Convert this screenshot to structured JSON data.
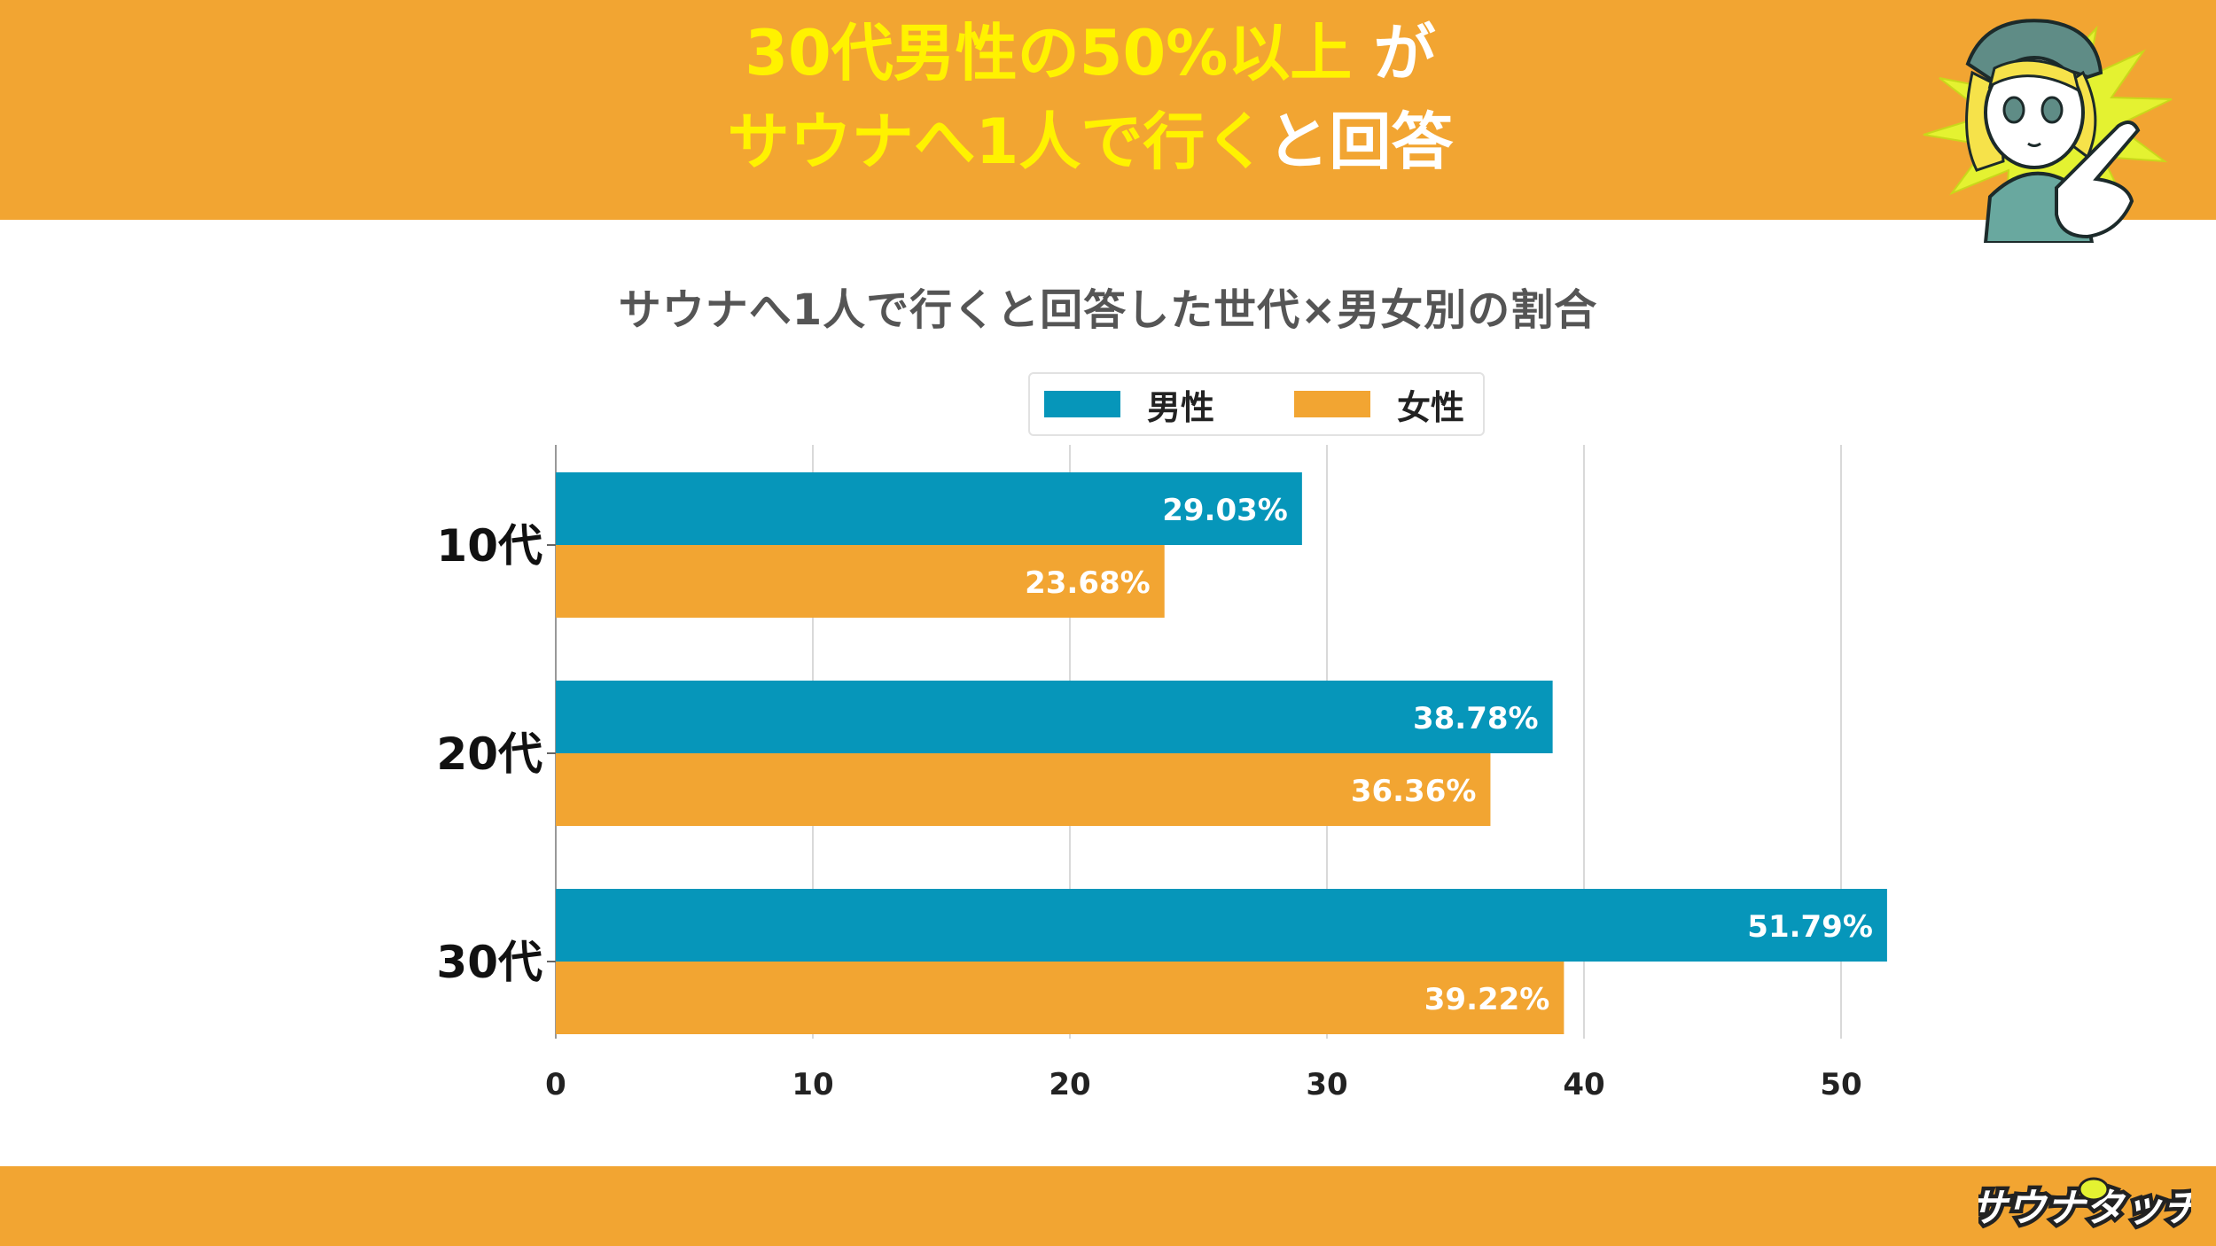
{
  "header": {
    "line1": "30代男性の50%以上",
    "line1_suffix": "が",
    "line2_highlight": "サウナへ1人で行く",
    "line2_suffix": "と回答"
  },
  "colors": {
    "banner": "#f2a532",
    "male": "#0696ba",
    "female": "#f2a532",
    "headline_yellow": "#fff200",
    "title_gray": "#555555"
  },
  "brand": {
    "logo_text": "サウナタッチ",
    "mascot_icon": "mascot-girl-pointing-icon"
  },
  "chart_data": {
    "type": "bar",
    "orientation": "horizontal",
    "title": "サウナへ1人で行くと回答した世代×男女別の割合",
    "categories": [
      "10代",
      "20代",
      "30代"
    ],
    "series": [
      {
        "name": "男性",
        "color": "#0696ba",
        "values": [
          29.03,
          38.78,
          51.79
        ],
        "labels": [
          "29.03%",
          "38.78%",
          "51.79%"
        ]
      },
      {
        "name": "女性",
        "color": "#f2a532",
        "values": [
          23.68,
          36.36,
          39.22
        ],
        "labels": [
          "23.68%",
          "36.36%",
          "39.22%"
        ]
      }
    ],
    "x_ticks": [
      "0",
      "10",
      "20",
      "30",
      "40",
      "50"
    ],
    "xlim": [
      0,
      52
    ],
    "grid": true,
    "legend_position": "top"
  }
}
